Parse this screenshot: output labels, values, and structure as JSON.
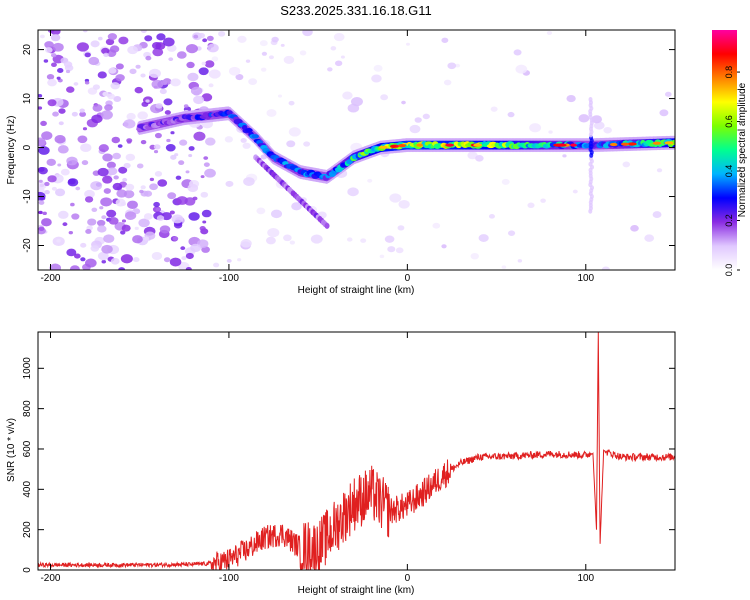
{
  "title": "S233.2025.331.16.18.G11",
  "chart_data": [
    {
      "type": "heatmap",
      "title": "S233.2025.331.16.18.G11",
      "xlabel": "Height of straight line (km)",
      "ylabel": "Frequency (Hz)",
      "xlim": [
        -207,
        150
      ],
      "ylim": [
        -25,
        24
      ],
      "xticks": [
        -200,
        -100,
        0,
        100
      ],
      "yticks": [
        -20,
        -10,
        0,
        10,
        20
      ],
      "colorbar": {
        "label": "Normalized spectral amplitude",
        "range": [
          0,
          0.97
        ],
        "ticks": [
          0.0,
          0.2,
          0.4,
          0.6,
          0.8
        ],
        "tick_labels": [
          "0.0",
          "0.2",
          "0.4",
          "0.6",
          "0.8"
        ],
        "colormap": [
          "#ffffff",
          "#e0c8ff",
          "#8a2be2",
          "#0000ff",
          "#00b4ff",
          "#00ff90",
          "#7cff00",
          "#ffff00",
          "#ff8000",
          "#ff0000",
          "#ff00a0"
        ]
      },
      "signal_track": [
        {
          "x": -150,
          "y": 4,
          "amp": 0.18
        },
        {
          "x": -125,
          "y": 6,
          "amp": 0.22
        },
        {
          "x": -100,
          "y": 7,
          "amp": 0.3
        },
        {
          "x": -85,
          "y": 2,
          "amp": 0.3
        },
        {
          "x": -75,
          "y": -2,
          "amp": 0.32
        },
        {
          "x": -60,
          "y": -5,
          "amp": 0.35
        },
        {
          "x": -45,
          "y": -6,
          "amp": 0.3
        },
        {
          "x": -30,
          "y": -2,
          "amp": 0.45
        },
        {
          "x": -15,
          "y": 0,
          "amp": 0.55
        },
        {
          "x": 0,
          "y": 0.5,
          "amp": 0.6
        },
        {
          "x": 50,
          "y": 0.5,
          "amp": 0.55
        },
        {
          "x": 105,
          "y": 0.5,
          "amp": 0.3
        },
        {
          "x": 150,
          "y": 1,
          "amp": 0.55
        }
      ]
    },
    {
      "type": "line",
      "xlabel": "Height of straight line (km)",
      "ylabel": "SNR (10 * v/v)",
      "xlim": [
        -207,
        150
      ],
      "ylim": [
        0,
        1180
      ],
      "xticks": [
        -200,
        -100,
        0,
        100
      ],
      "yticks": [
        0,
        200,
        400,
        600,
        800,
        1000
      ],
      "series": [
        {
          "name": "SNR",
          "color": "#e02020",
          "x": [
            -207,
            -180,
            -150,
            -120,
            -105,
            -100,
            -90,
            -80,
            -70,
            -60,
            -50,
            -40,
            -30,
            -20,
            -10,
            0,
            10,
            20,
            30,
            40,
            60,
            80,
            100,
            104,
            106,
            107,
            108,
            110,
            120,
            150
          ],
          "y": [
            25,
            25,
            25,
            28,
            35,
            50,
            100,
            160,
            180,
            110,
            110,
            220,
            330,
            380,
            290,
            320,
            390,
            470,
            530,
            560,
            565,
            575,
            570,
            580,
            200,
            1180,
            130,
            590,
            560,
            560
          ]
        }
      ]
    }
  ]
}
